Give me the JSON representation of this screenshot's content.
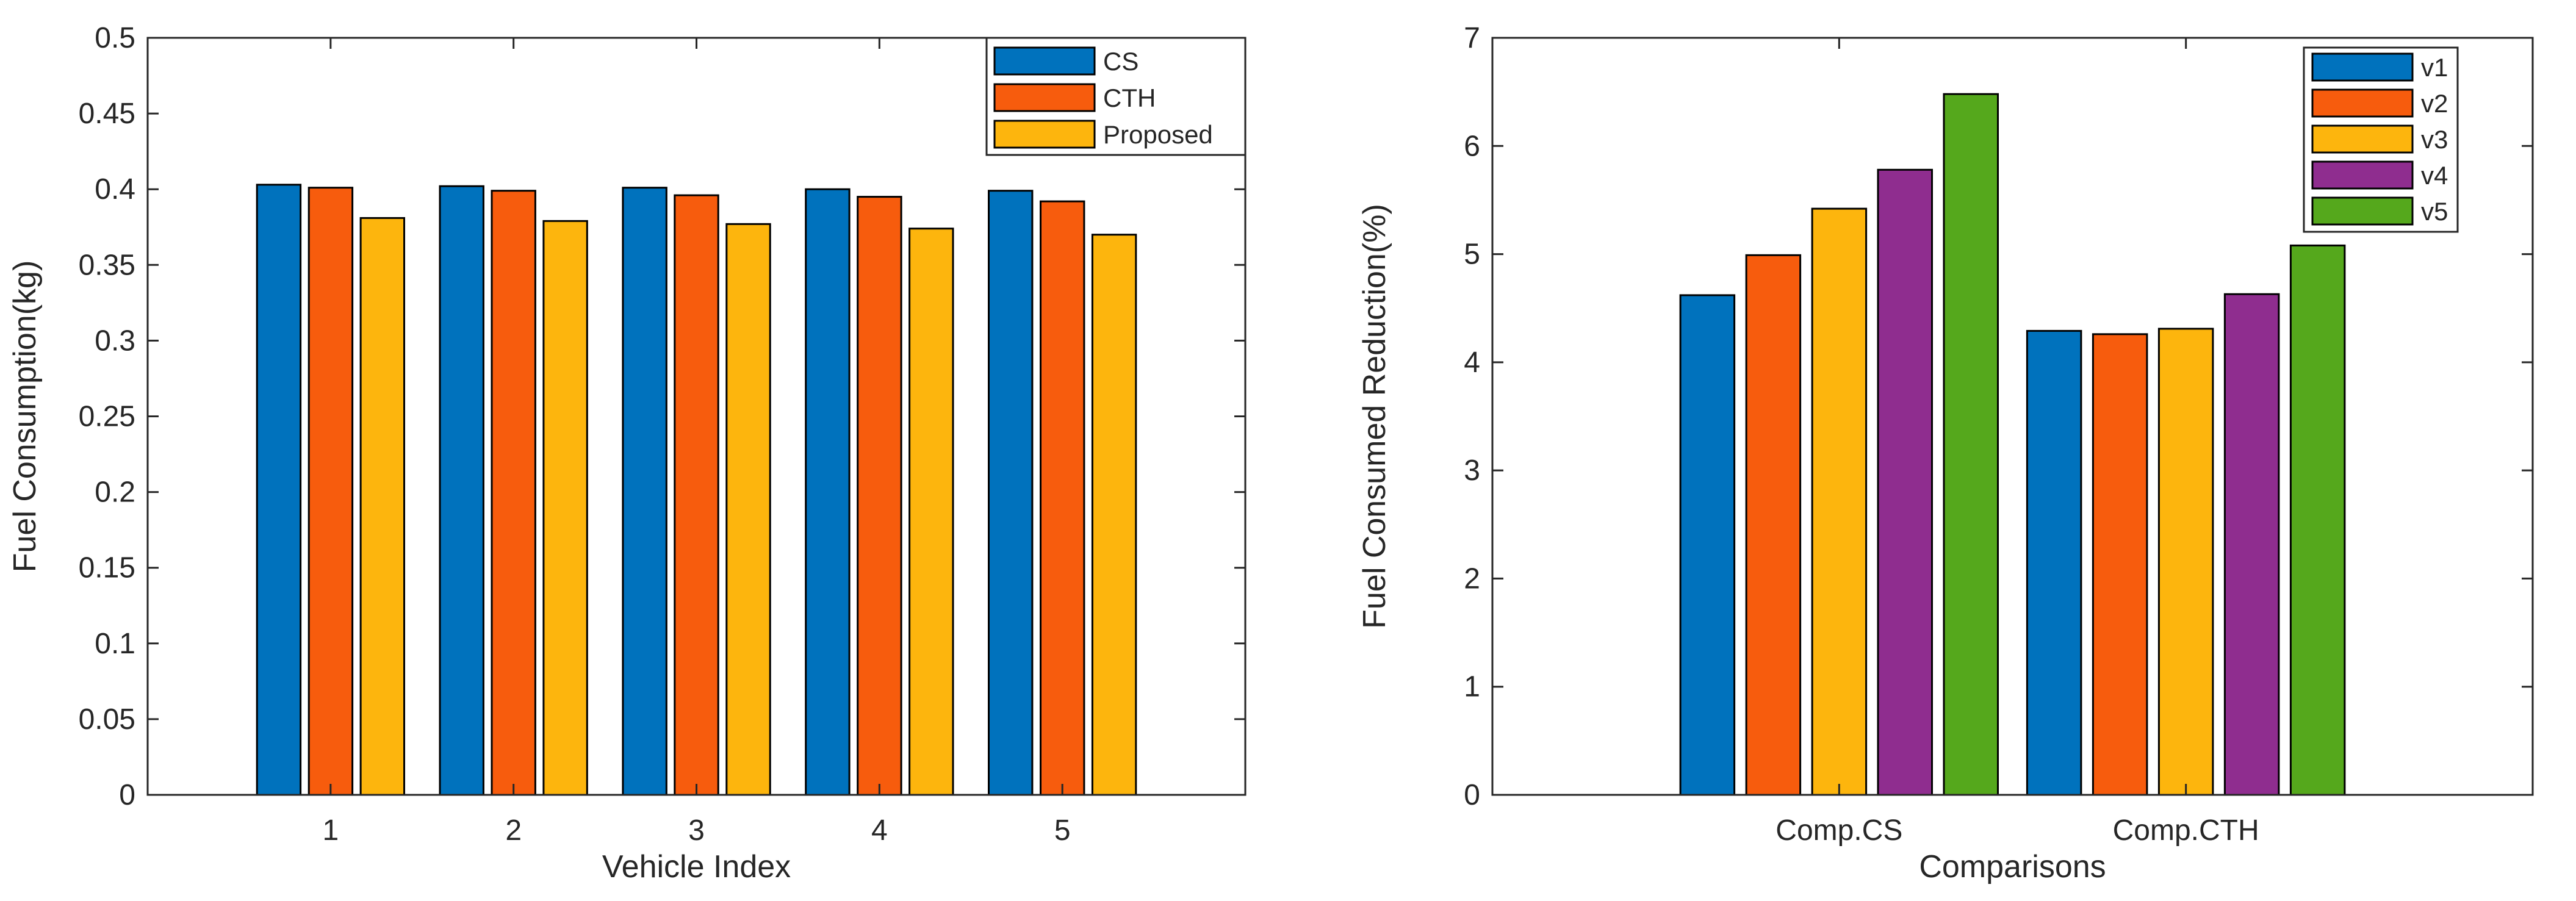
{
  "chart_data": [
    {
      "type": "bar",
      "title": "",
      "xlabel": "Vehicle Index",
      "ylabel": "Fuel Consumption(kg)",
      "categories": [
        "1",
        "2",
        "3",
        "4",
        "5"
      ],
      "ylim": [
        0,
        0.5
      ],
      "yticks": [
        0,
        0.05,
        0.1,
        0.15,
        0.2,
        0.25,
        0.3,
        0.35,
        0.4,
        0.45,
        0.5
      ],
      "ytick_labels": [
        "0",
        "0.05",
        "0.1",
        "0.15",
        "0.2",
        "0.25",
        "0.3",
        "0.35",
        "0.4",
        "0.45",
        "0.5"
      ],
      "grid": false,
      "legend_position": "top-right",
      "series": [
        {
          "name": "CS",
          "color": "#0072BD",
          "values": [
            0.403,
            0.402,
            0.401,
            0.4,
            0.399
          ]
        },
        {
          "name": "CTH",
          "color": "#F75C0D",
          "values": [
            0.401,
            0.399,
            0.396,
            0.395,
            0.392
          ]
        },
        {
          "name": "Proposed",
          "color": "#FDB50D",
          "values": [
            0.381,
            0.379,
            0.377,
            0.374,
            0.37
          ]
        }
      ]
    },
    {
      "type": "bar",
      "title": "",
      "xlabel": "Comparisons",
      "ylabel": "Fuel Consumed Reduction(%)",
      "categories": [
        "Comp.CS",
        "Comp.CTH"
      ],
      "ylim": [
        0,
        7
      ],
      "yticks": [
        0,
        1,
        2,
        3,
        4,
        5,
        6,
        7
      ],
      "ytick_labels": [
        "0",
        "1",
        "2",
        "3",
        "4",
        "5",
        "6",
        "7"
      ],
      "grid": false,
      "legend_position": "top-right",
      "series": [
        {
          "name": "v1",
          "color": "#0072BD",
          "values": [
            4.62,
            4.29
          ]
        },
        {
          "name": "v2",
          "color": "#F75C0D",
          "values": [
            4.99,
            4.26
          ]
        },
        {
          "name": "v3",
          "color": "#FDB50D",
          "values": [
            5.42,
            4.31
          ]
        },
        {
          "name": "v4",
          "color": "#8F2D8F",
          "values": [
            5.78,
            4.63
          ]
        },
        {
          "name": "v5",
          "color": "#55A81C",
          "values": [
            6.48,
            5.08
          ]
        }
      ]
    }
  ]
}
